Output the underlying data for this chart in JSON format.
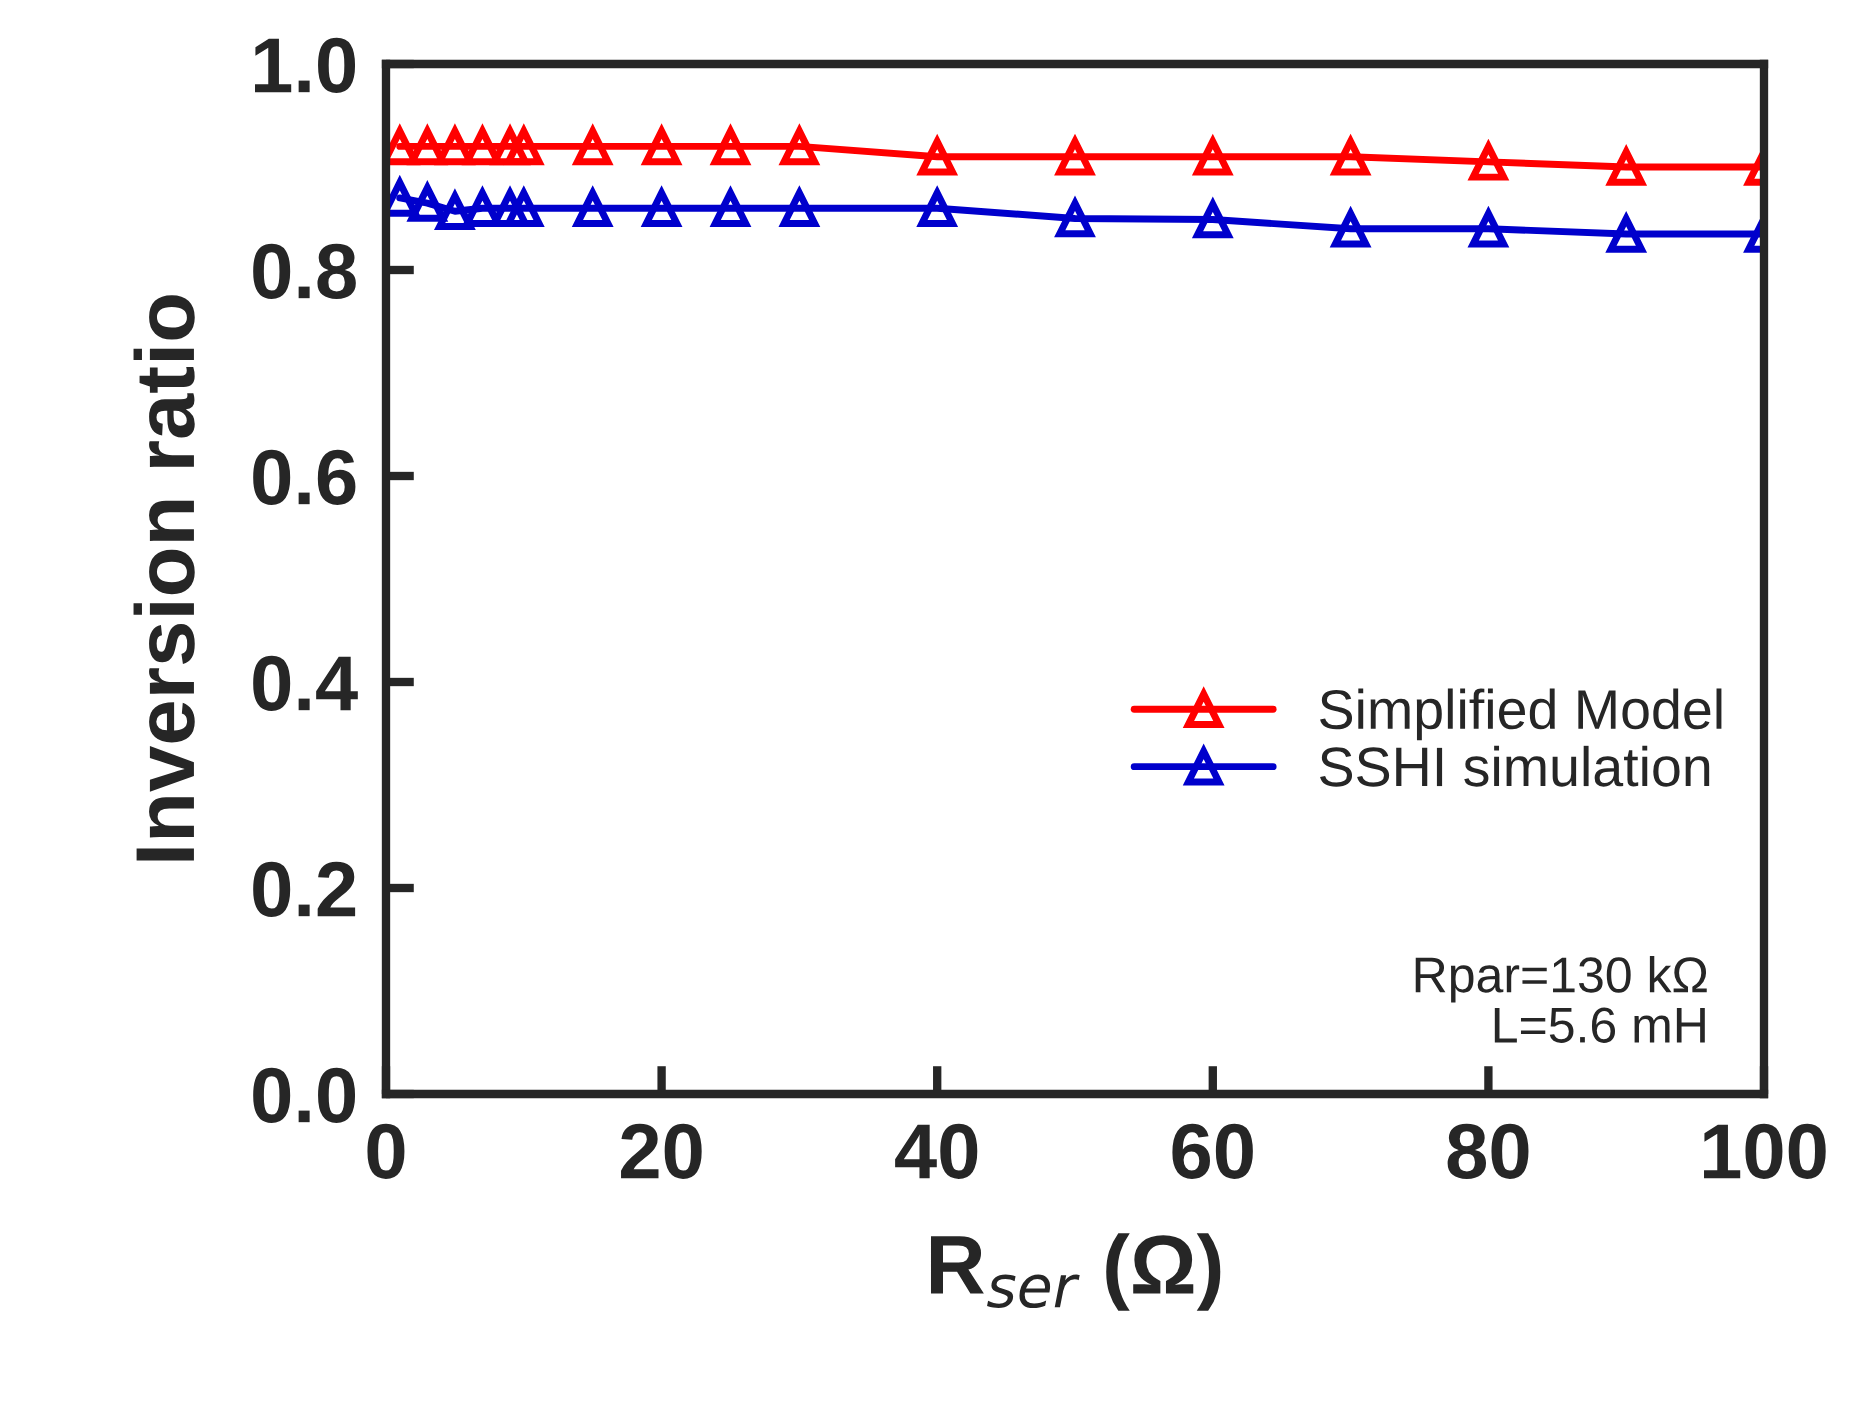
{
  "chart_data": {
    "type": "line",
    "xlabel": "R$_{ser}$ (Ω)",
    "ylabel": "Inversion ratio",
    "xlim": [
      0,
      100
    ],
    "xticks": [
      0,
      20,
      40,
      60,
      80,
      100
    ],
    "ylim": [
      0,
      1.0
    ],
    "yticks": [
      {
        "value": 0,
        "label": "0.0"
      },
      {
        "value": 0.2,
        "label": "0.2"
      },
      {
        "value": 0.4,
        "label": "0.4"
      },
      {
        "value": 0.6,
        "label": "0.6"
      },
      {
        "value": 0.8,
        "label": "0.8"
      },
      {
        "value": 1.0,
        "label": "1.0"
      }
    ],
    "x": [
      1,
      3,
      5,
      7,
      9,
      10,
      15,
      20,
      25,
      30,
      40,
      50,
      60,
      70,
      80,
      90,
      100
    ],
    "series": [
      {
        "name": "Simplified Model",
        "color": "#ff0000",
        "values": [
          0.92,
          0.92,
          0.92,
          0.92,
          0.92,
          0.92,
          0.92,
          0.92,
          0.92,
          0.92,
          0.91,
          0.91,
          0.91,
          0.91,
          0.905,
          0.9,
          0.9
        ]
      },
      {
        "name": "SSHI simulation",
        "color": "#0000cc",
        "values": [
          0.87,
          0.865,
          0.857,
          0.86,
          0.86,
          0.86,
          0.86,
          0.86,
          0.86,
          0.86,
          0.86,
          0.85,
          0.849,
          0.84,
          0.84,
          0.835,
          0.835
        ]
      }
    ],
    "marker": "triangle",
    "line_style": "solid",
    "legend": "bottom right",
    "grid": false,
    "annotations": [
      "Rpar=130 kΩ\nL=5.6 mH"
    ]
  }
}
